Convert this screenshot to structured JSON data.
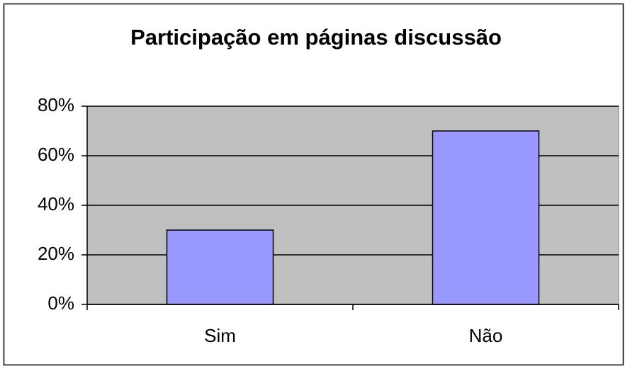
{
  "chart_data": {
    "type": "bar",
    "title": "Participação em páginas discussão",
    "categories": [
      "Sim",
      "Não"
    ],
    "values": [
      30,
      70
    ],
    "color": "#9999ff",
    "ylim": [
      0,
      80
    ],
    "yticks": [
      {
        "value": 0,
        "label": "0%"
      },
      {
        "value": 20,
        "label": "20%"
      },
      {
        "value": 40,
        "label": "40%"
      },
      {
        "value": 60,
        "label": "60%"
      },
      {
        "value": 80,
        "label": "80%"
      }
    ],
    "grid": true
  }
}
